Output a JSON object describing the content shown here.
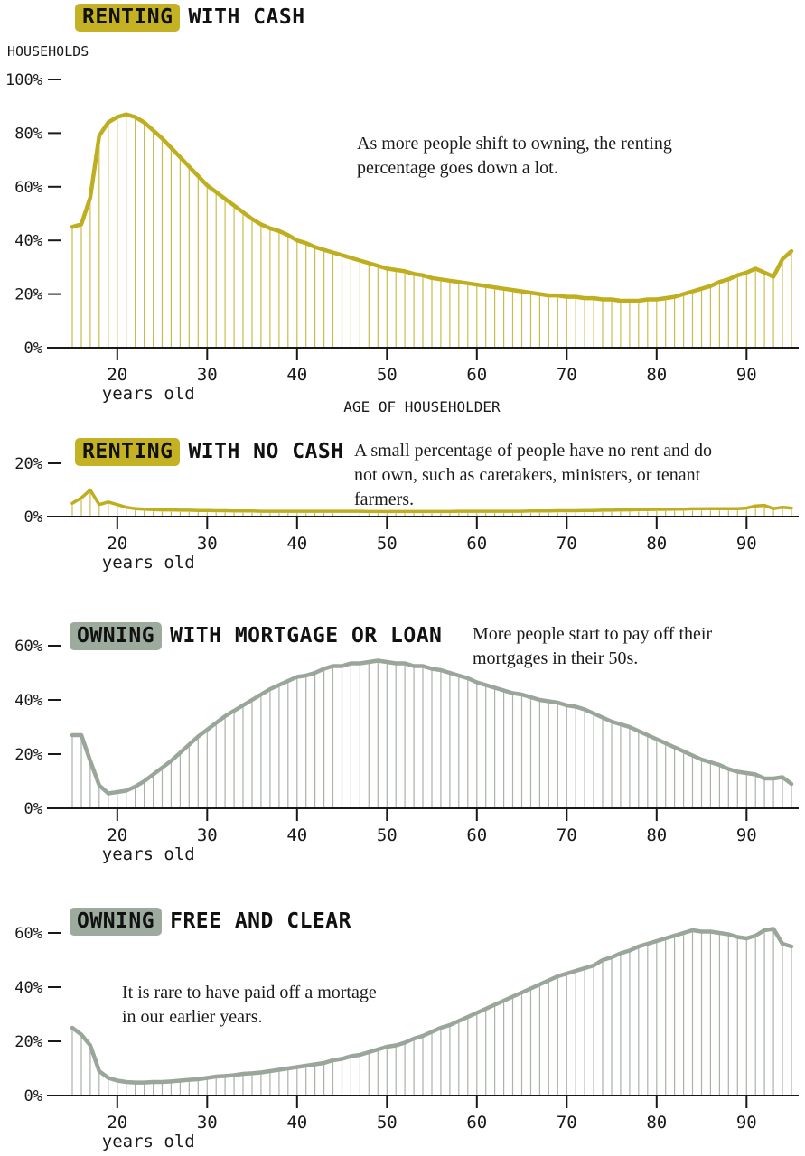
{
  "figure": {
    "background": "#ffffff",
    "text_color": "#191919"
  },
  "chart_data": [
    {
      "type": "line",
      "title": {
        "highlight": "RENTING",
        "rest": "WITH CASH"
      },
      "annotation": "As more people shift to owning, the renting\npercentage goes down a lot.",
      "ylabel": "HOUSEHOLDS",
      "xlabel": "AGE OF HOUSEHOLDER",
      "x_sub_label": "years old",
      "colors": {
        "line": "#bfae20",
        "droplines": "#ccbc4e",
        "highlight_bg": "#c5b224"
      },
      "ages": {
        "start": 15,
        "end": 95,
        "step": 1
      },
      "ylim": [
        0,
        100
      ],
      "yticks": [
        0,
        20,
        40,
        60,
        80,
        100
      ],
      "xticks": [
        20,
        30,
        40,
        50,
        60,
        70,
        80,
        90
      ],
      "values": [
        45,
        46,
        56,
        79,
        84,
        86,
        87,
        86,
        84,
        81,
        78,
        74.5,
        71,
        67.5,
        64,
        60.5,
        58,
        55.5,
        53,
        50.5,
        48,
        46,
        44.5,
        43.5,
        42,
        40,
        39,
        37.5,
        36.5,
        35.5,
        34.5,
        33.5,
        32.5,
        31.5,
        30.5,
        29.5,
        29,
        28.5,
        27.5,
        27,
        26,
        25.5,
        25,
        24.5,
        24,
        23.5,
        23,
        22.5,
        22,
        21.5,
        21,
        20.5,
        20,
        19.5,
        19.5,
        19,
        19,
        18.5,
        18.5,
        18,
        18,
        17.5,
        17.5,
        17.5,
        18,
        18,
        18.5,
        19,
        20,
        21,
        22,
        23,
        24.5,
        25.5,
        27,
        28,
        29.5,
        28,
        26.5,
        33,
        36
      ]
    },
    {
      "type": "line",
      "title": {
        "highlight": "RENTING",
        "rest": "WITH NO CASH"
      },
      "annotation": "A small percentage of people have no rent and do\nnot own, such as caretakers, ministers, or tenant\nfarmers.",
      "x_sub_label": "years old",
      "colors": {
        "line": "#bfae20",
        "droplines": "#ccbc4e",
        "highlight_bg": "#c5b224"
      },
      "ages": {
        "start": 15,
        "end": 95,
        "step": 1
      },
      "ylim": [
        0,
        20
      ],
      "yticks": [
        0,
        20
      ],
      "xticks": [
        20,
        30,
        40,
        50,
        60,
        70,
        80,
        90
      ],
      "values": [
        5,
        7,
        10,
        4.5,
        5.5,
        4.5,
        3.5,
        3,
        2.8,
        2.6,
        2.5,
        2.5,
        2.4,
        2.4,
        2.3,
        2.3,
        2.2,
        2.2,
        2.1,
        2.1,
        2.1,
        2,
        2,
        2,
        2,
        2,
        2,
        2,
        2,
        2,
        2,
        2,
        2,
        1.9,
        1.9,
        1.9,
        1.9,
        1.9,
        1.9,
        1.9,
        1.9,
        1.9,
        1.9,
        2,
        2,
        2,
        2,
        2,
        2,
        2,
        2,
        2.1,
        2.1,
        2.1,
        2.2,
        2.2,
        2.2,
        2.3,
        2.3,
        2.4,
        2.4,
        2.5,
        2.5,
        2.6,
        2.6,
        2.7,
        2.7,
        2.8,
        2.8,
        2.9,
        2.9,
        3,
        3,
        3,
        3,
        3.2,
        4,
        4.2,
        3,
        3.5,
        3.2
      ]
    },
    {
      "type": "line",
      "title": {
        "highlight": "OWNING",
        "rest": "WITH MORTGAGE OR LOAN"
      },
      "annotation": "More people start to pay off their\nmortgages in their 50s.",
      "x_sub_label": "years old",
      "colors": {
        "line": "#99a699",
        "droplines": "#aab2aa",
        "highlight_bg": "#9dab9e"
      },
      "ages": {
        "start": 15,
        "end": 95,
        "step": 1
      },
      "ylim": [
        0,
        60
      ],
      "yticks": [
        0,
        20,
        40,
        60
      ],
      "xticks": [
        20,
        30,
        40,
        50,
        60,
        70,
        80,
        90
      ],
      "values": [
        27,
        27,
        17.5,
        8.5,
        5.5,
        6,
        6.5,
        8,
        10,
        12.5,
        15,
        17.5,
        20.5,
        23.5,
        26.5,
        29,
        31.5,
        34,
        36,
        38,
        40,
        42,
        44,
        45.5,
        47,
        48.5,
        49,
        50,
        51.5,
        52.5,
        52.5,
        53.5,
        53.5,
        54,
        54.5,
        54,
        53.5,
        53.5,
        52.5,
        52.5,
        51.5,
        51,
        50,
        49,
        48,
        46.5,
        45.5,
        44.5,
        43.5,
        42.5,
        42,
        41,
        40,
        39.5,
        39,
        38,
        37.5,
        36.5,
        35,
        33.5,
        32,
        31,
        30,
        28.5,
        27,
        25.5,
        24,
        22.5,
        21,
        19.5,
        18,
        17,
        16,
        14.5,
        13.5,
        13,
        12.5,
        11,
        11,
        11.5,
        9
      ]
    },
    {
      "type": "line",
      "title": {
        "highlight": "OWNING",
        "rest": "FREE AND CLEAR"
      },
      "annotation": "It is rare to have paid off a mortage\nin our earlier years.",
      "x_sub_label": "years old",
      "colors": {
        "line": "#99a699",
        "droplines": "#aab2aa",
        "highlight_bg": "#9dab9e"
      },
      "ages": {
        "start": 15,
        "end": 95,
        "step": 1
      },
      "ylim": [
        0,
        60
      ],
      "yticks": [
        0,
        20,
        40,
        60
      ],
      "xticks": [
        20,
        30,
        40,
        50,
        60,
        70,
        80,
        90
      ],
      "values": [
        25,
        22.5,
        18.5,
        9,
        6.5,
        5.5,
        5,
        4.8,
        4.8,
        5,
        5,
        5.2,
        5.5,
        5.8,
        6,
        6.5,
        7,
        7.2,
        7.5,
        8,
        8.2,
        8.5,
        9,
        9.5,
        10,
        10.5,
        11,
        11.5,
        12,
        13,
        13.5,
        14.5,
        15,
        16,
        17,
        18,
        18.5,
        19.5,
        21,
        22,
        23.5,
        25,
        26,
        27.5,
        29,
        30.5,
        32,
        33.5,
        35,
        36.5,
        38,
        39.5,
        41,
        42.5,
        44,
        45,
        46,
        47,
        48,
        50,
        51,
        52.5,
        53.5,
        55,
        56,
        57,
        58,
        59,
        60,
        61,
        60.5,
        60.5,
        60,
        59.5,
        58.5,
        58,
        59,
        61,
        61.5,
        56,
        55
      ]
    }
  ]
}
